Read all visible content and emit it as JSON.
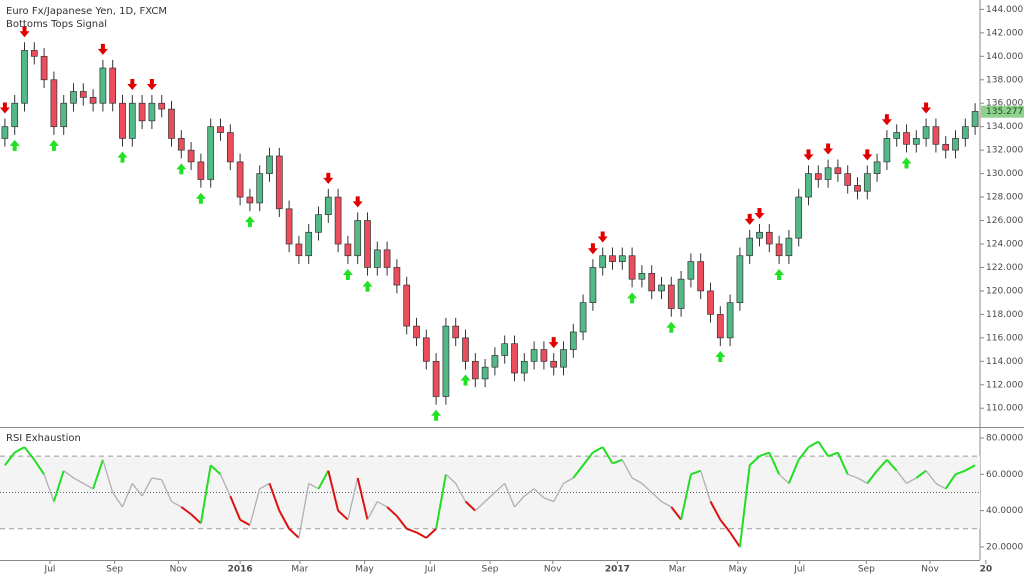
{
  "chart_data": [
    {
      "type": "candlestick",
      "title": "Euro Fx/Japanese Yen, 1D, FXCM",
      "subtitle": "Bottoms Tops Signal",
      "open": [
        133,
        134,
        136,
        140.5,
        140,
        138,
        134,
        136,
        137,
        136.5,
        136,
        139,
        136,
        133,
        136,
        134.5,
        136,
        135.5,
        133,
        132,
        131,
        129.5,
        134,
        133.5,
        131,
        128,
        127.5,
        130,
        131.5,
        127,
        124,
        123,
        125,
        126.5,
        128,
        124,
        123,
        126,
        122,
        123.5,
        122,
        120.5,
        117,
        116,
        114,
        111,
        117,
        116,
        114,
        112.5,
        113.5,
        114.5,
        115.5,
        113,
        114,
        115,
        114,
        113.5,
        115,
        116.5,
        119,
        122,
        123,
        122.5,
        123,
        121,
        121.5,
        120,
        120.5,
        118.5,
        121,
        122.5,
        120,
        118,
        116,
        119,
        123,
        124.5,
        125,
        124,
        123,
        124.5,
        128,
        130,
        129.5,
        130.5,
        130,
        129,
        128.5,
        130,
        131,
        133,
        133.5,
        132.5,
        133,
        134,
        132.5,
        132,
        133,
        134
      ],
      "high": [
        134.7,
        136.7,
        141.2,
        141.2,
        140.7,
        138.7,
        136.7,
        137.7,
        137.7,
        137.2,
        139.7,
        139.7,
        136.7,
        136.7,
        136.7,
        136.7,
        136.7,
        136.2,
        133.7,
        132.7,
        131.7,
        134.7,
        134.7,
        134.2,
        131.7,
        128.7,
        130.7,
        132.2,
        132.2,
        127.7,
        124.7,
        125.7,
        127.2,
        128.7,
        128.7,
        124.7,
        126.7,
        126.7,
        124.2,
        124.2,
        122.7,
        121.2,
        117.7,
        116.7,
        114.7,
        117.7,
        117.7,
        116.7,
        114.7,
        114.2,
        115.2,
        116.2,
        116.2,
        114.7,
        115.7,
        115.7,
        114.7,
        115.7,
        117.2,
        119.7,
        122.7,
        123.7,
        123.7,
        123.7,
        123.7,
        122.2,
        122.2,
        121.2,
        121.2,
        121.7,
        123.2,
        123.2,
        120.7,
        118.7,
        119.7,
        123.7,
        125.2,
        125.7,
        125.7,
        124.7,
        125.2,
        128.7,
        130.7,
        130.7,
        131.2,
        131.2,
        130.7,
        129.7,
        130.7,
        131.7,
        133.7,
        134.2,
        134.2,
        133.7,
        134.7,
        134.7,
        133.2,
        133.7,
        134.7,
        136
      ],
      "low": [
        132.3,
        133.3,
        135.3,
        139.3,
        137.3,
        133.3,
        133.3,
        135.3,
        135.8,
        135.3,
        135.3,
        135.3,
        132.3,
        132.3,
        133.8,
        133.8,
        134.8,
        132.3,
        131.3,
        130.3,
        128.8,
        128.8,
        132.8,
        130.3,
        127.3,
        126.8,
        126.8,
        129.3,
        126.3,
        123.3,
        122.3,
        122.3,
        124.3,
        125.8,
        123.3,
        122.3,
        122.3,
        121.3,
        121.3,
        121.3,
        119.8,
        116.3,
        115.3,
        113.3,
        110.3,
        110.3,
        115.3,
        113.3,
        111.8,
        111.8,
        112.8,
        113.8,
        112.3,
        112.3,
        113.3,
        113.3,
        112.8,
        112.8,
        114.3,
        115.8,
        118.3,
        121.3,
        121.8,
        121.8,
        120.3,
        120.3,
        119.3,
        119.3,
        117.8,
        117.8,
        120.3,
        119.3,
        117.3,
        115.3,
        115.3,
        118.3,
        122.3,
        123.8,
        123.3,
        122.3,
        122.3,
        123.8,
        127.3,
        128.8,
        128.8,
        129.3,
        128.3,
        127.8,
        127.8,
        129.3,
        130.3,
        132.3,
        131.8,
        131.8,
        132.3,
        131.8,
        131.3,
        131.3,
        132.3,
        133.3
      ],
      "close": [
        134,
        136,
        140.5,
        140,
        138,
        134,
        136,
        137,
        136.5,
        136,
        139,
        136,
        133,
        136,
        134.5,
        136,
        135.5,
        133,
        132,
        131,
        129.5,
        134,
        133.5,
        131,
        128,
        127.5,
        130,
        131.5,
        127,
        124,
        123,
        125,
        126.5,
        128,
        124,
        123,
        126,
        122,
        123.5,
        122,
        120.5,
        117,
        116,
        114,
        111,
        117,
        116,
        114,
        112.5,
        113.5,
        114.5,
        115.5,
        113,
        114,
        115,
        114,
        113.5,
        115,
        116.5,
        119,
        122,
        123,
        122.5,
        123,
        121,
        121.5,
        120,
        120.5,
        118.5,
        121,
        122.5,
        120,
        118,
        116,
        119,
        123,
        124.5,
        125,
        124,
        123,
        124.5,
        128,
        130,
        129.5,
        130.5,
        130,
        129,
        128.5,
        130,
        131,
        133,
        133.5,
        132.5,
        133,
        134,
        132.5,
        132,
        133,
        134,
        135.3
      ],
      "tops": [
        0,
        2,
        10,
        13,
        15,
        33,
        36,
        56,
        60,
        61,
        76,
        77,
        82,
        84,
        88,
        90,
        94
      ],
      "bottoms": [
        1,
        5,
        12,
        18,
        20,
        25,
        35,
        37,
        44,
        47,
        64,
        68,
        73,
        79,
        92
      ],
      "up_color": "#53b987",
      "down_color": "#eb4d5c",
      "top_color": "#e00000",
      "bottom_color": "#22e022",
      "last_price": 135.277,
      "last_price_color": "#8fd18f",
      "xlim": [
        -0.5,
        100.5
      ],
      "ylim": [
        108.4,
        144.8
      ],
      "yticks": [
        {
          "value": 110,
          "label": "110.000"
        },
        {
          "value": 112,
          "label": "112.000"
        },
        {
          "value": 114,
          "label": "114.000"
        },
        {
          "value": 116,
          "label": "116.000"
        },
        {
          "value": 118,
          "label": "118.000"
        },
        {
          "value": 120,
          "label": "120.000"
        },
        {
          "value": 122,
          "label": "122.000"
        },
        {
          "value": 124,
          "label": "124.000"
        },
        {
          "value": 126,
          "label": "126.000"
        },
        {
          "value": 128,
          "label": "128.000"
        },
        {
          "value": 130,
          "label": "130.000"
        },
        {
          "value": 132,
          "label": "132.000"
        },
        {
          "value": 134,
          "label": "134.000"
        },
        {
          "value": 136,
          "label": "136.000"
        },
        {
          "value": 138,
          "label": "138.000"
        },
        {
          "value": 140,
          "label": "140.000"
        },
        {
          "value": 142,
          "label": "142.000"
        },
        {
          "value": 144,
          "label": "144.000"
        }
      ]
    },
    {
      "type": "line",
      "title": "RSI Exhaustion",
      "values": [
        65,
        72,
        75,
        68,
        60,
        45,
        62,
        58,
        55,
        52,
        68,
        50,
        42,
        55,
        48,
        58,
        57,
        45,
        42,
        38,
        33,
        65,
        60,
        48,
        35,
        32,
        52,
        55,
        40,
        30,
        25,
        55,
        52,
        62,
        40,
        35,
        58,
        35,
        45,
        42,
        37,
        30,
        28,
        25,
        30,
        60,
        55,
        45,
        40,
        45,
        50,
        55,
        42,
        48,
        52,
        47,
        45,
        55,
        58,
        65,
        72,
        75,
        66,
        68,
        58,
        55,
        50,
        45,
        42,
        35,
        60,
        62,
        45,
        35,
        28,
        20,
        65,
        70,
        72,
        60,
        55,
        68,
        75,
        78,
        70,
        72,
        60,
        58,
        55,
        62,
        68,
        62,
        55,
        58,
        62,
        55,
        52,
        60,
        62,
        65
      ],
      "levels": [
        70,
        50,
        30
      ],
      "signal_levels": {
        "high": 60,
        "low": 40
      },
      "high_color": "#22dd22",
      "low_color": "#dd1111",
      "color": "#b0b0b0",
      "xlim": [
        -0.5,
        100.5
      ],
      "ylim": [
        12.8,
        85.5
      ],
      "xticks": [
        {
          "value": 4.6,
          "label": "Jul"
        },
        {
          "value": 11.2,
          "label": "Sep"
        },
        {
          "value": 17.7,
          "label": "Nov"
        },
        {
          "value": 24,
          "label": "2016"
        },
        {
          "value": 30.1,
          "label": "Mar"
        },
        {
          "value": 36.7,
          "label": "May"
        },
        {
          "value": 43.4,
          "label": "Jul"
        },
        {
          "value": 49.5,
          "label": "Sep"
        },
        {
          "value": 55.9,
          "label": "Nov"
        },
        {
          "value": 62.5,
          "label": "2017"
        },
        {
          "value": 68.6,
          "label": "Mar"
        },
        {
          "value": 74.8,
          "label": "May"
        },
        {
          "value": 81.1,
          "label": "Jul"
        },
        {
          "value": 87.9,
          "label": "Sep"
        },
        {
          "value": 94.4,
          "label": "Nov"
        },
        {
          "value": 100.1,
          "label": "20"
        }
      ],
      "yticks": [
        {
          "value": 20,
          "label": "20.0000"
        },
        {
          "value": 40,
          "label": "40.0000"
        },
        {
          "value": 60,
          "label": "60.0000"
        },
        {
          "value": 80,
          "label": "80.0000"
        }
      ]
    }
  ]
}
